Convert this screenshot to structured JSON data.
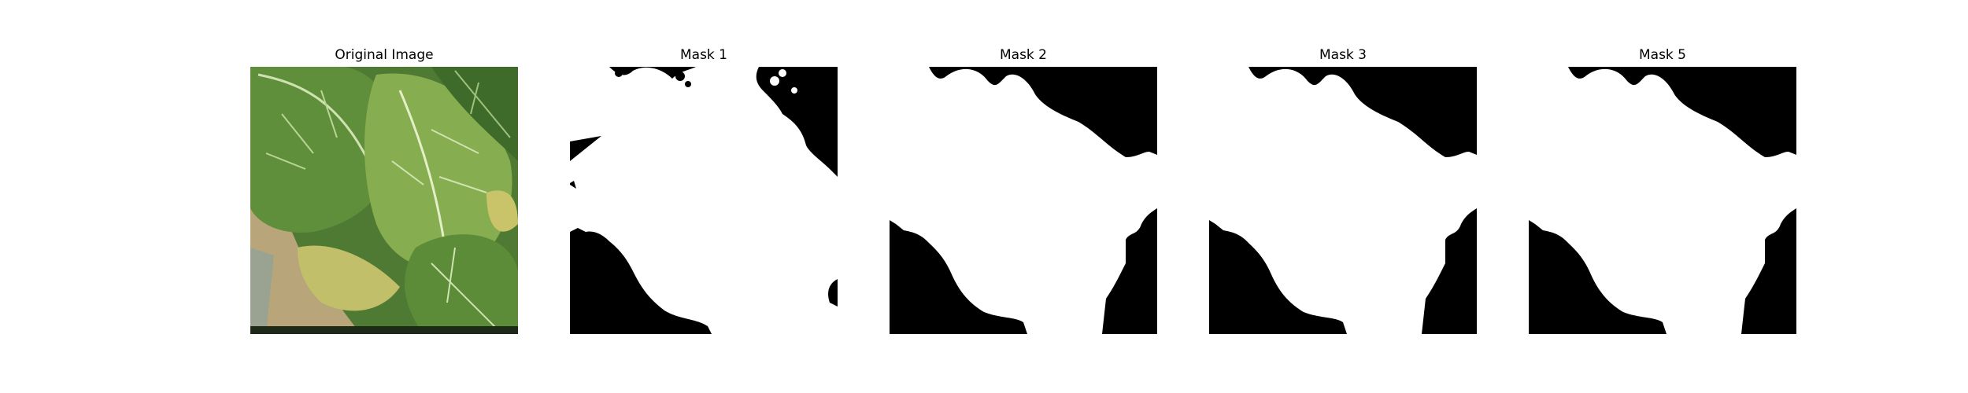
{
  "figure": {
    "panels": [
      {
        "title": "Original Image",
        "kind": "photo",
        "subject": "green-leaves"
      },
      {
        "title": "Mask 1",
        "kind": "mask"
      },
      {
        "title": "Mask 2",
        "kind": "mask"
      },
      {
        "title": "Mask 3",
        "kind": "mask"
      },
      {
        "title": "Mask 5",
        "kind": "mask"
      }
    ],
    "colors": {
      "background": "#ffffff",
      "mask_foreground": "#ffffff",
      "mask_background": "#000000",
      "leaf_dark": "#3f6b2a",
      "leaf_mid": "#5f8f3a",
      "leaf_light": "#8fb45a",
      "leaf_yellow": "#c9c46a",
      "soil": "#b9a57a"
    }
  }
}
